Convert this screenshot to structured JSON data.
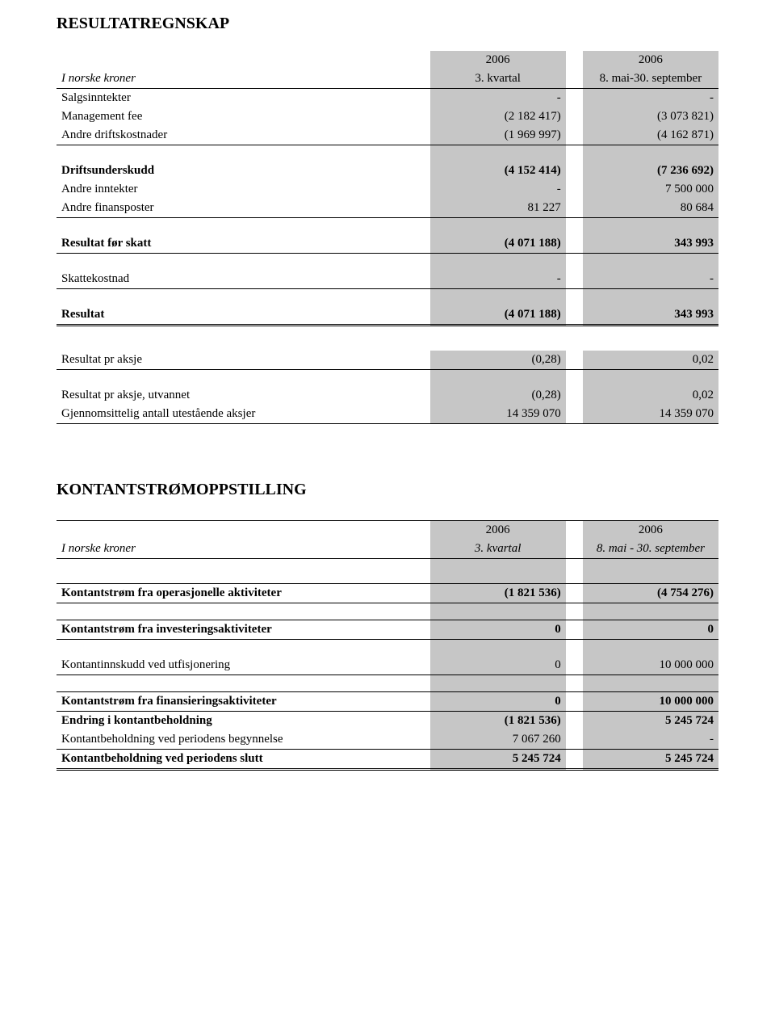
{
  "resultat": {
    "title": "RESULTATREGNSKAP",
    "header": {
      "row_label": "I norske kroner",
      "col1_year": "2006",
      "col1_sub": "3. kvartal",
      "col2_year": "2006",
      "col2_sub": "8. mai-30. september"
    },
    "rows": {
      "salgsinntekter": {
        "label": "Salgsinntekter",
        "v1": "-",
        "v2": "-"
      },
      "management_fee": {
        "label": "Management fee",
        "v1": "(2 182 417)",
        "v2": "(3 073 821)"
      },
      "andre_driftskostnader": {
        "label": "Andre driftskostnader",
        "v1": "(1 969 997)",
        "v2": "(4 162 871)"
      },
      "driftsunderskudd": {
        "label": "Driftsunderskudd",
        "v1": "(4 152 414)",
        "v2": "(7 236 692)"
      },
      "andre_inntekter": {
        "label": "Andre inntekter",
        "v1": "-",
        "v2": "7 500 000"
      },
      "andre_finansposter": {
        "label": "Andre finansposter",
        "v1": "81 227",
        "v2": "80 684"
      },
      "resultat_for_skatt": {
        "label": "Resultat før skatt",
        "v1": "(4 071 188)",
        "v2": "343 993"
      },
      "skattekostnad": {
        "label": "Skattekostnad",
        "v1": "-",
        "v2": "-"
      },
      "resultat": {
        "label": "Resultat",
        "v1": "(4 071 188)",
        "v2": "343 993"
      },
      "res_pr_aksje": {
        "label": "Resultat pr aksje",
        "v1": "(0,28)",
        "v2": "0,02"
      },
      "res_pr_aksje_utv": {
        "label": "Resultat pr aksje, utvannet",
        "v1": "(0,28)",
        "v2": "0,02"
      },
      "antall_aksjer": {
        "label": "Gjennomsittelig antall utestående aksjer",
        "v1": "14 359 070",
        "v2": "14 359 070"
      }
    }
  },
  "kontant": {
    "title": "KONTANTSTRØMOPPSTILLING",
    "header": {
      "row_label": "I norske kroner",
      "col1_year": "2006",
      "col1_sub": "3. kvartal",
      "col2_year": "2006",
      "col2_sub": "8.  mai - 30.  september"
    },
    "rows": {
      "op": {
        "label": "Kontantstrøm fra operasjonelle aktiviteter",
        "v1": "(1 821 536)",
        "v2": "(4 754 276)"
      },
      "inv": {
        "label": "Kontantstrøm fra investeringsaktiviteter",
        "v1": "0",
        "v2": "0"
      },
      "innskudd": {
        "label": "Kontantinnskudd ved utfisjonering",
        "v1": "0",
        "v2": "10 000 000"
      },
      "fin": {
        "label": "Kontantstrøm fra finansieringsaktiviteter",
        "v1": "0",
        "v2": "10 000 000"
      },
      "endring": {
        "label": "Endring i kontantbeholdning",
        "v1": "(1 821 536)",
        "v2": "5 245 724"
      },
      "begynn": {
        "label": "Kontantbeholdning ved periodens begynnelse",
        "v1": "7 067 260",
        "v2": "-"
      },
      "slutt": {
        "label": "Kontantbeholdning ved periodens slutt",
        "v1": "5 245 724",
        "v2": "5 245 724"
      }
    }
  }
}
